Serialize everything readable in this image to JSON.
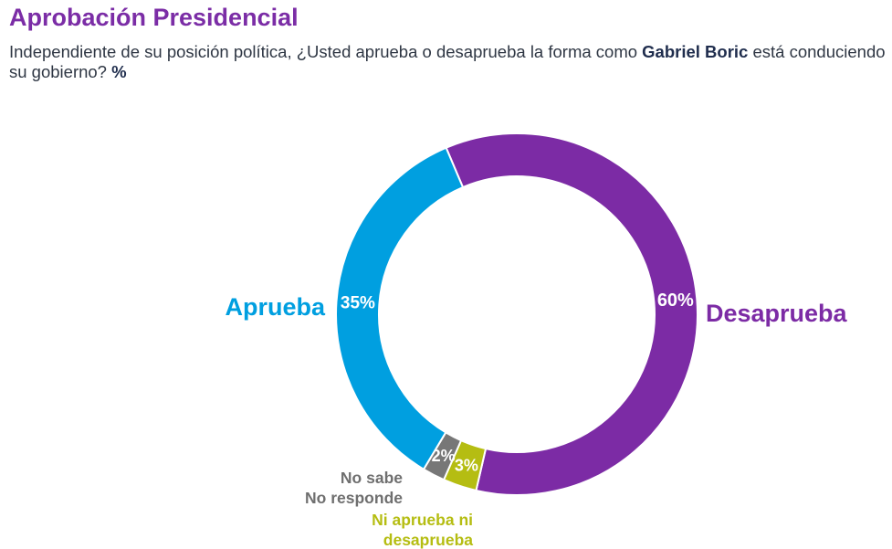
{
  "header": {
    "title": "Aprobación Presidencial",
    "question_part1": "Independiente de su posición política, ¿Usted aprueba o desaprueba la forma como ",
    "question_name": "Gabriel Boric",
    "question_part2": " está conduciendo su gobierno? ",
    "question_unit": "%"
  },
  "chart_data": {
    "type": "pie",
    "donut": true,
    "categories": [
      "Desaprueba",
      "Ni aprueba ni desaprueba",
      "No sabe No responde",
      "Aprueba"
    ],
    "values": [
      60,
      3,
      2,
      35
    ],
    "value_labels": [
      "60%",
      "3%",
      "2%",
      "35%"
    ],
    "label_lines": [
      [
        "Desaprueba"
      ],
      [
        "Ni aprueba ni",
        "desaprueba"
      ],
      [
        "No sabe",
        "No responde"
      ],
      [
        "Aprueba"
      ]
    ],
    "colors": [
      "#7c2ba5",
      "#b5bd12",
      "#777777",
      "#009fe0"
    ],
    "label_colors": [
      "#7c2ba5",
      "#b5bd12",
      "#6f6f6f",
      "#009fe0"
    ]
  }
}
